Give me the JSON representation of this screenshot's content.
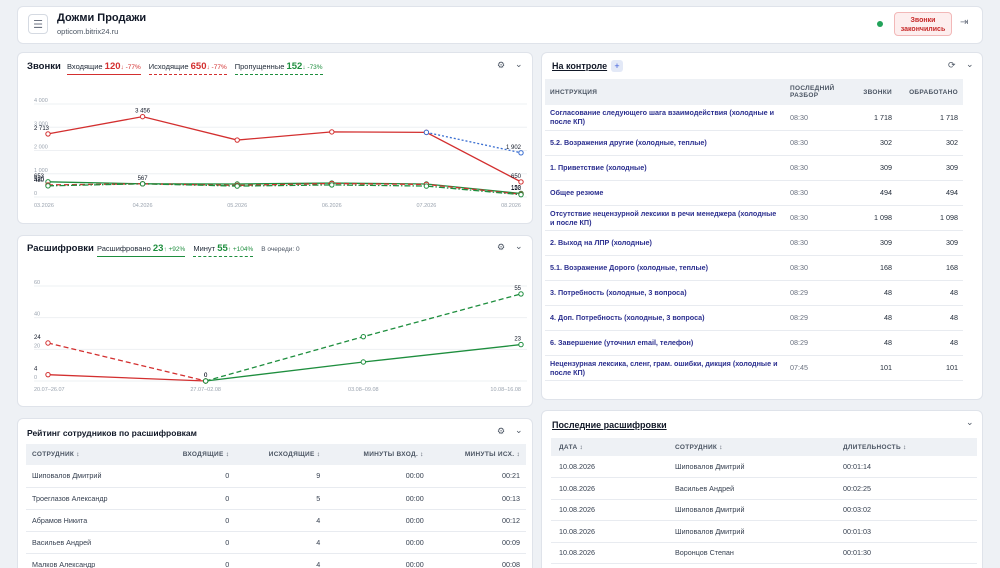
{
  "header": {
    "menu_icon": "menu-icon",
    "title": "Дожми Продажи",
    "subtitle": "opticom.bitrix24.ru",
    "status_color": "#22a35a",
    "calls_over_line1": "Звонки",
    "calls_over_line2": "закончились",
    "logout_icon": "logout-icon"
  },
  "calls": {
    "title": "Звонки",
    "legend": [
      {
        "label": "Входящие",
        "value": "120",
        "delta": "↓ -77%",
        "color": "#d32f2f"
      },
      {
        "label": "Исходящие",
        "value": "650",
        "delta": "↓ -77%",
        "color": "#d32f2f"
      },
      {
        "label": "Пропущенные",
        "value": "152",
        "delta": "↓ -73%",
        "color": "#1e8e3e"
      }
    ]
  },
  "transcripts": {
    "title": "Расшифровки",
    "legend": [
      {
        "label": "Расшифровано",
        "value": "23",
        "delta": "↑ +92%",
        "color": "#1e8e3e"
      },
      {
        "label": "Минут",
        "value": "55",
        "delta": "↑ +104%",
        "color": "#1e8e3e"
      }
    ],
    "queue": "В очереди: 0"
  },
  "chart_data": [
    {
      "type": "line",
      "title": "Звонки",
      "x": [
        "03.2026",
        "04.2026",
        "05.2026",
        "06.2026",
        "07.2026",
        "08.2026"
      ],
      "ylim": [
        0,
        4000
      ],
      "yticks": [
        "4 000",
        "3 000",
        "2 000",
        "1 000",
        "0"
      ],
      "series": [
        {
          "name": "Исходящие",
          "color": "#d32f2f",
          "dash": "solid",
          "values": [
            2713,
            3456,
            2450,
            2800,
            2780,
            650
          ]
        },
        {
          "name": "Исходящие (прогноз)",
          "color": "#3b6fd1",
          "dash": "dotted",
          "values": [
            null,
            null,
            null,
            null,
            2780,
            1902
          ]
        },
        {
          "name": "Пропущенные",
          "color": "#1e8e3e",
          "dash": "solid",
          "values": [
            653,
            567,
            560,
            600,
            560,
            152
          ]
        },
        {
          "name": "Входящие",
          "color": "#d32f2f",
          "dash": "dashed",
          "values": [
            520,
            567,
            500,
            580,
            540,
            120
          ]
        },
        {
          "name": "Пропущенные (прогноз)",
          "color": "#1e8e3e",
          "dash": "dashdot",
          "values": [
            480,
            567,
            470,
            520,
            470,
            100
          ]
        }
      ],
      "labels": [
        {
          "i": 0,
          "v": 2713,
          "text": "2 713"
        },
        {
          "i": 1,
          "v": 3456,
          "text": "3 456"
        },
        {
          "i": 1,
          "v": 567,
          "text": "567"
        },
        {
          "i": 0,
          "v": 653,
          "text": "653"
        },
        {
          "i": 0,
          "v": 520,
          "text": "520"
        },
        {
          "i": 0,
          "v": 480,
          "text": "480"
        },
        {
          "i": 5,
          "v": 1902,
          "text": "1 902"
        },
        {
          "i": 5,
          "v": 650,
          "text": "650"
        },
        {
          "i": 5,
          "v": 152,
          "text": "152"
        },
        {
          "i": 5,
          "v": 120,
          "text": "120"
        }
      ]
    },
    {
      "type": "line",
      "title": "Расшифровки",
      "x": [
        "20.07–26.07",
        "27.07–02.08",
        "03.08–09.08",
        "10.08–16.08"
      ],
      "ylim": [
        0,
        60
      ],
      "yticks": [
        "60",
        "40",
        "20",
        "0"
      ],
      "series": [
        {
          "name": "Расшифровано",
          "color": "#d32f2f",
          "dash": "solid",
          "values": [
            4,
            0,
            null,
            null
          ]
        },
        {
          "name": "Минут",
          "color": "#d32f2f",
          "dash": "dashed",
          "values": [
            24,
            0,
            null,
            null
          ]
        },
        {
          "name": "Расшифровано",
          "color": "#1e8e3e",
          "dash": "solid",
          "values": [
            null,
            0,
            12,
            23
          ]
        },
        {
          "name": "Минут",
          "color": "#1e8e3e",
          "dash": "dashed",
          "values": [
            null,
            0,
            28,
            55
          ]
        }
      ],
      "labels": [
        {
          "i": 0,
          "v": 24,
          "text": "24"
        },
        {
          "i": 0,
          "v": 4,
          "text": "4"
        },
        {
          "i": 1,
          "v": 0,
          "text": "0"
        },
        {
          "i": 1,
          "v": 0,
          "text": "0"
        },
        {
          "i": 3,
          "v": 55,
          "text": "55"
        },
        {
          "i": 3,
          "v": 23,
          "text": "23"
        }
      ]
    }
  ],
  "ranking": {
    "title": "Рейтинг сотрудников по расшифровкам",
    "columns": [
      "Сотрудник ↕",
      "Входящие ↕",
      "Исходящие ↕",
      "Минуты вход. ↕",
      "Минуты исх. ↕"
    ],
    "rows": [
      [
        "Шиповалов Дмитрий",
        "0",
        "9",
        "00:00",
        "00:21"
      ],
      [
        "Троеглазов Александр",
        "0",
        "5",
        "00:00",
        "00:13"
      ],
      [
        "Абрамов Никита",
        "0",
        "4",
        "00:00",
        "00:12"
      ],
      [
        "Васильев Андрей",
        "0",
        "4",
        "00:00",
        "00:09"
      ],
      [
        "Малков Александр",
        "0",
        "4",
        "00:00",
        "00:08"
      ]
    ]
  },
  "control": {
    "title": "На контроле",
    "columns": [
      "Инструкция",
      "Последний разбор",
      "Звонки",
      "Обработано"
    ],
    "rows": [
      [
        "Согласование следующего шага взаимодействия (холодные и после КП)",
        "08:30",
        "1 718",
        "1 718"
      ],
      [
        "5.2. Возражения другие (холодные, теплые)",
        "08:30",
        "302",
        "302"
      ],
      [
        "1. Приветствие (холодные)",
        "08:30",
        "309",
        "309"
      ],
      [
        "Общее резюме",
        "08:30",
        "494",
        "494"
      ],
      [
        "Отсутствие нецензурной лексики в речи менеджера (холодные и после КП)",
        "08:30",
        "1 098",
        "1 098"
      ],
      [
        "2. Выход на ЛПР (холодные)",
        "08:30",
        "309",
        "309"
      ],
      [
        "5.1. Возражение Дорого (холодные, теплые)",
        "08:30",
        "168",
        "168"
      ],
      [
        "3. Потребность (холодные, 3 вопроса)",
        "08:29",
        "48",
        "48"
      ],
      [
        "4. Доп. Потребность (холодные, 3 вопроса)",
        "08:29",
        "48",
        "48"
      ],
      [
        "6. Завершение (уточнил email, телефон)",
        "08:29",
        "48",
        "48"
      ],
      [
        "Нецензурная лексика, сленг, грам. ошибки, дикция (холодные и после КП)",
        "07:45",
        "101",
        "101"
      ]
    ]
  },
  "last": {
    "title": "Последние расшифровки",
    "columns": [
      "Дата ↕",
      "Сотрудник ↕",
      "Длительность ↕"
    ],
    "rows": [
      [
        "10.08.2026",
        "Шиповалов Дмитрий",
        "00:01:14"
      ],
      [
        "10.08.2026",
        "Васильев Андрей",
        "00:02:25"
      ],
      [
        "10.08.2026",
        "Шиповалов Дмитрий",
        "00:03:02"
      ],
      [
        "10.08.2026",
        "Шиповалов Дмитрий",
        "00:01:03"
      ],
      [
        "10.08.2026",
        "Воронцов Степан",
        "00:01:30"
      ]
    ]
  }
}
